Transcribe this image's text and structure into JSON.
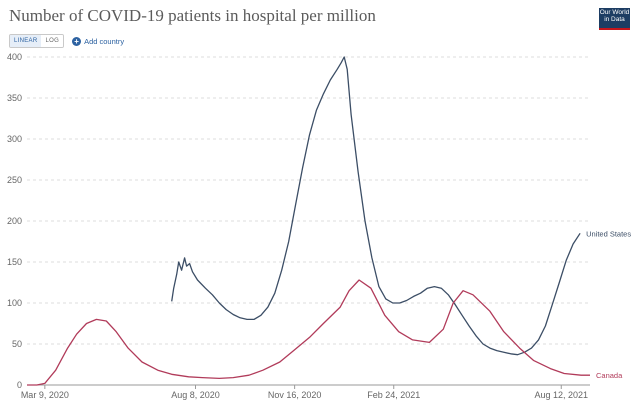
{
  "header": {
    "title": "Number of COVID-19 patients in hospital per million",
    "logo_lines": [
      "Our World",
      "in Data"
    ]
  },
  "controls": {
    "linear_label": "LINEAR",
    "log_label": "LOG",
    "active_scale": "linear",
    "add_country_label": "Add country"
  },
  "chart_data": {
    "type": "line",
    "title": "Number of COVID-19 patients in hospital per million",
    "xlabel": "",
    "ylabel": "",
    "ylim": [
      0,
      400
    ],
    "yticks": [
      0,
      50,
      100,
      150,
      200,
      250,
      300,
      350,
      400
    ],
    "xticks": [
      "Mar 9, 2020",
      "Aug 8, 2020",
      "Nov 16, 2020",
      "Feb 24, 2021",
      "Aug 12, 2021"
    ],
    "xlim": [
      "2020-02-20",
      "2021-09-10"
    ],
    "grid": true,
    "colors": {
      "United States": "#3c4e66",
      "Canada": "#b13b5a"
    },
    "series": [
      {
        "name": "United States",
        "x": [
          "2020-07-15",
          "2020-07-17",
          "2020-07-20",
          "2020-07-22",
          "2020-07-25",
          "2020-07-28",
          "2020-07-30",
          "2020-08-02",
          "2020-08-05",
          "2020-08-10",
          "2020-08-18",
          "2020-08-25",
          "2020-09-01",
          "2020-09-08",
          "2020-09-15",
          "2020-09-22",
          "2020-09-29",
          "2020-10-06",
          "2020-10-13",
          "2020-10-20",
          "2020-10-27",
          "2020-11-03",
          "2020-11-10",
          "2020-11-17",
          "2020-11-24",
          "2020-12-01",
          "2020-12-08",
          "2020-12-15",
          "2020-12-22",
          "2020-12-29",
          "2021-01-02",
          "2021-01-05",
          "2021-01-08",
          "2021-01-12",
          "2021-01-19",
          "2021-01-26",
          "2021-02-02",
          "2021-02-09",
          "2021-02-16",
          "2021-02-23",
          "2021-03-02",
          "2021-03-09",
          "2021-03-16",
          "2021-03-23",
          "2021-03-30",
          "2021-04-06",
          "2021-04-13",
          "2021-04-20",
          "2021-04-27",
          "2021-05-04",
          "2021-05-11",
          "2021-05-18",
          "2021-05-25",
          "2021-06-01",
          "2021-06-08",
          "2021-06-15",
          "2021-06-22",
          "2021-06-29",
          "2021-07-06",
          "2021-07-13",
          "2021-07-20",
          "2021-07-27",
          "2021-08-03",
          "2021-08-10",
          "2021-08-17",
          "2021-08-24",
          "2021-08-31"
        ],
        "values": [
          102,
          118,
          135,
          150,
          140,
          155,
          145,
          148,
          138,
          128,
          118,
          110,
          100,
          92,
          86,
          82,
          80,
          80,
          85,
          95,
          112,
          140,
          175,
          220,
          265,
          305,
          335,
          355,
          372,
          385,
          393,
          400,
          385,
          330,
          260,
          200,
          155,
          120,
          105,
          100,
          100,
          103,
          108,
          112,
          118,
          120,
          118,
          110,
          98,
          85,
          72,
          60,
          50,
          45,
          42,
          40,
          38,
          37,
          40,
          45,
          55,
          72,
          98,
          125,
          152,
          172,
          185
        ]
      },
      {
        "name": "Canada",
        "x": [
          "2020-02-20",
          "2020-03-01",
          "2020-03-09",
          "2020-03-20",
          "2020-04-01",
          "2020-04-10",
          "2020-04-20",
          "2020-04-30",
          "2020-05-10",
          "2020-05-20",
          "2020-06-01",
          "2020-06-15",
          "2020-07-01",
          "2020-07-15",
          "2020-08-01",
          "2020-08-15",
          "2020-09-01",
          "2020-09-15",
          "2020-10-01",
          "2020-10-15",
          "2020-11-01",
          "2020-11-15",
          "2020-12-01",
          "2020-12-15",
          "2021-01-01",
          "2021-01-10",
          "2021-01-20",
          "2021-02-01",
          "2021-02-15",
          "2021-03-01",
          "2021-03-15",
          "2021-04-01",
          "2021-04-15",
          "2021-04-25",
          "2021-05-05",
          "2021-05-15",
          "2021-06-01",
          "2021-06-15",
          "2021-07-01",
          "2021-07-15",
          "2021-08-01",
          "2021-08-15",
          "2021-09-01",
          "2021-09-10"
        ],
        "values": [
          0,
          0,
          2,
          18,
          45,
          62,
          75,
          80,
          78,
          65,
          45,
          28,
          18,
          13,
          10,
          9,
          8,
          9,
          12,
          18,
          28,
          42,
          58,
          75,
          95,
          115,
          128,
          118,
          85,
          65,
          55,
          52,
          68,
          100,
          115,
          110,
          90,
          65,
          45,
          30,
          20,
          14,
          12,
          12
        ]
      }
    ]
  }
}
